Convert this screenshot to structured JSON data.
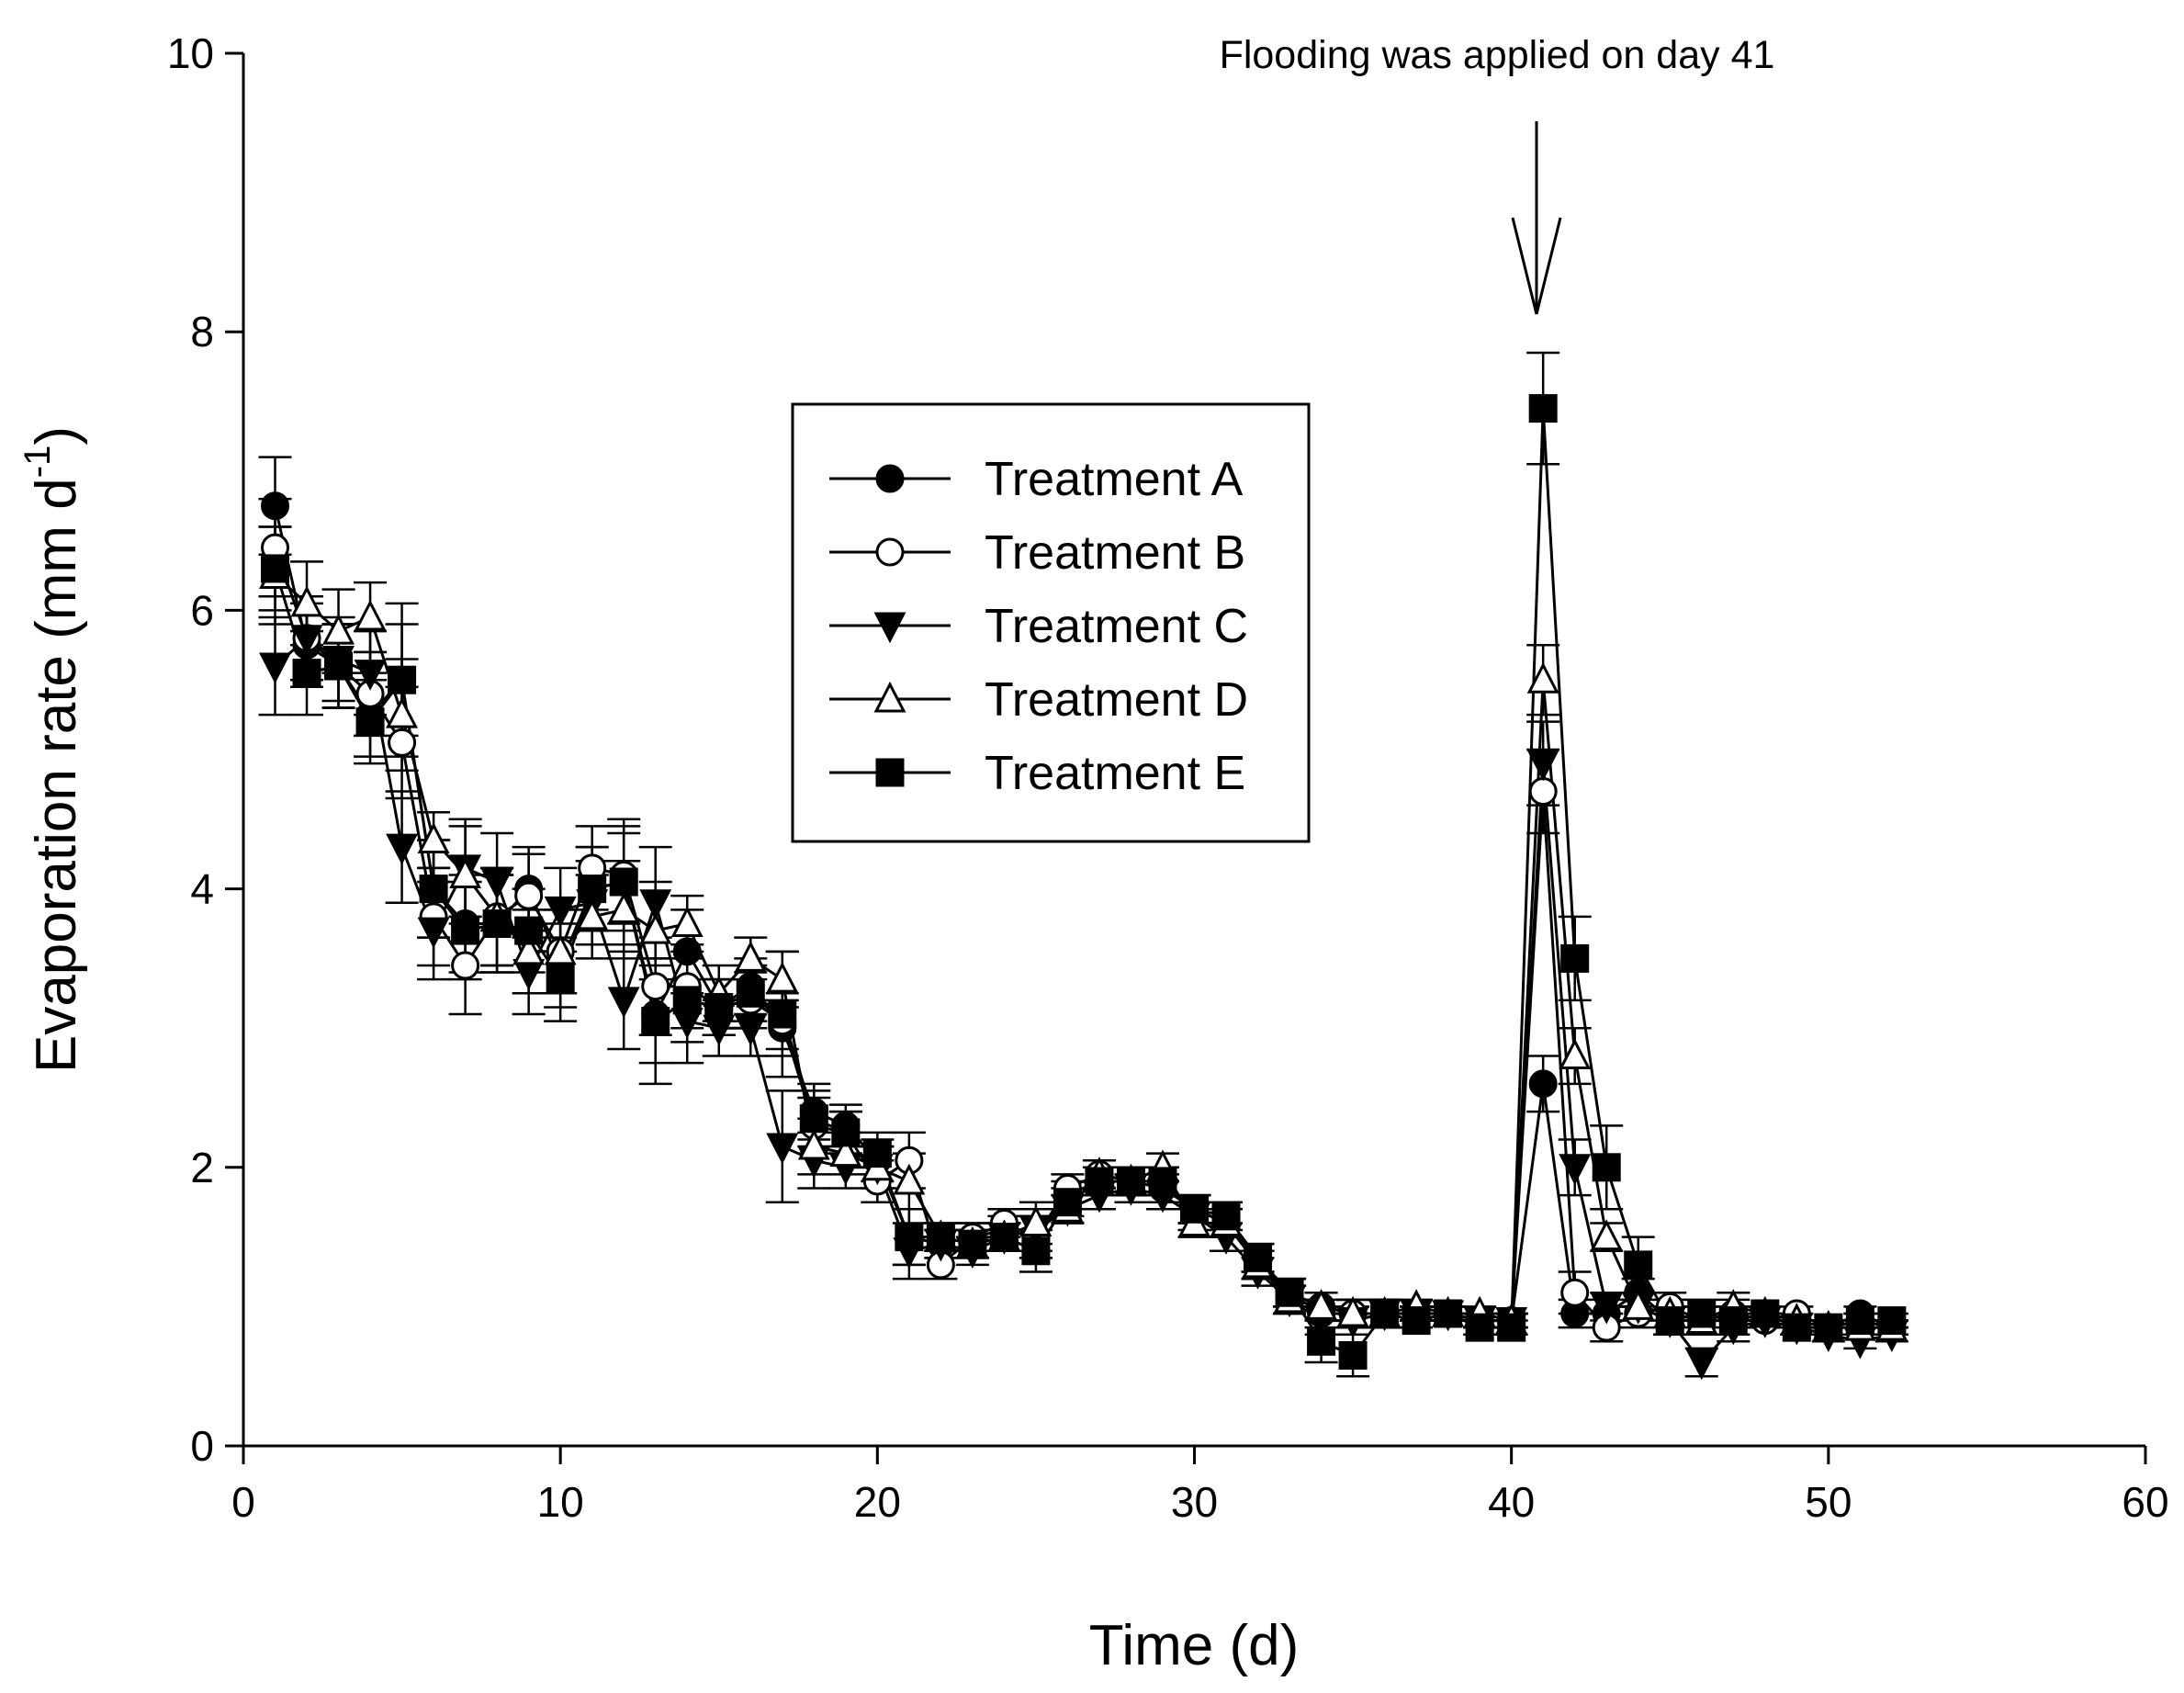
{
  "chart_data": {
    "type": "line",
    "title": "",
    "xlabel": "Time (d)",
    "ylabel": "Evaporation rate (mm d",
    "ylabel_sup": "-1",
    "ylabel_close": ")",
    "xlim": [
      0,
      60
    ],
    "ylim": [
      0,
      10
    ],
    "xticks": [
      "0",
      "10",
      "20",
      "30",
      "40",
      "50",
      "60"
    ],
    "yticks": [
      "0",
      "2",
      "4",
      "6",
      "8",
      "10"
    ],
    "annotation": {
      "text": "Flooding was applied on day 41",
      "x": 41
    },
    "legend_position": "center",
    "grid": false,
    "x": [
      1,
      2,
      3,
      4,
      5,
      6,
      7,
      8,
      9,
      10,
      11,
      12,
      13,
      14,
      15,
      16,
      17,
      18,
      19,
      20,
      21,
      22,
      23,
      24,
      25,
      26,
      27,
      28,
      29,
      30,
      31,
      32,
      33,
      34,
      35,
      36,
      37,
      38,
      39,
      40,
      41,
      42,
      43,
      44,
      45,
      46,
      47,
      48,
      49,
      50,
      51,
      52
    ],
    "series": [
      {
        "name": "Treatment A",
        "marker": "circle-filled",
        "values": [
          6.75,
          5.75,
          5.6,
          5.25,
          5.5,
          4.0,
          3.75,
          3.75,
          4.0,
          3.45,
          4.0,
          4.05,
          3.1,
          3.55,
          3.15,
          3.3,
          3.0,
          2.4,
          2.3,
          2.05,
          1.5,
          1.45,
          1.5,
          1.55,
          1.5,
          1.8,
          1.9,
          1.9,
          1.9,
          1.7,
          1.6,
          1.35,
          1.1,
          1.0,
          0.95,
          0.95,
          0.95,
          0.95,
          0.9,
          0.9,
          2.6,
          0.95,
          0.95,
          1.1,
          0.9,
          0.9,
          0.9,
          0.9,
          0.85,
          0.85,
          0.95,
          0.85
        ],
        "errors": [
          0.35,
          0.3,
          0.3,
          0.3,
          0.4,
          0.35,
          0.35,
          0.35,
          0.3,
          0.3,
          0.3,
          0.35,
          0.35,
          0.3,
          0.2,
          0.2,
          0.2,
          0.2,
          0.15,
          0.15,
          0.2,
          0.1,
          0.1,
          0.1,
          0.15,
          0.1,
          0.1,
          0.1,
          0.1,
          0.1,
          0.1,
          0.1,
          0.1,
          0.1,
          0.1,
          0.1,
          0.05,
          0.05,
          0.05,
          0.05,
          0.2,
          0.1,
          0.1,
          0.1,
          0.1,
          0.1,
          0.1,
          0.05,
          0.05,
          0.05,
          0.05,
          0.05
        ]
      },
      {
        "name": "Treatment B",
        "marker": "circle-open",
        "values": [
          6.45,
          5.8,
          5.6,
          5.4,
          5.05,
          3.8,
          3.45,
          3.8,
          3.95,
          3.55,
          4.15,
          4.1,
          3.3,
          3.3,
          3.15,
          3.2,
          3.05,
          2.3,
          2.25,
          1.9,
          2.05,
          1.3,
          1.5,
          1.6,
          1.5,
          1.85,
          1.95,
          1.9,
          1.85,
          1.7,
          1.6,
          1.3,
          1.1,
          0.95,
          0.95,
          0.95,
          0.95,
          0.95,
          0.9,
          0.9,
          4.7,
          1.1,
          0.85,
          0.95,
          1.0,
          0.9,
          0.95,
          0.9,
          0.95,
          0.85,
          0.9,
          0.85
        ],
        "errors": [
          0.35,
          0.3,
          0.3,
          0.3,
          0.4,
          0.35,
          0.35,
          0.35,
          0.3,
          0.3,
          0.3,
          0.35,
          0.35,
          0.3,
          0.2,
          0.2,
          0.2,
          0.2,
          0.15,
          0.15,
          0.2,
          0.1,
          0.1,
          0.1,
          0.15,
          0.1,
          0.1,
          0.1,
          0.1,
          0.1,
          0.1,
          0.1,
          0.1,
          0.1,
          0.1,
          0.1,
          0.05,
          0.05,
          0.05,
          0.05,
          0.3,
          0.15,
          0.1,
          0.1,
          0.1,
          0.1,
          0.1,
          0.05,
          0.05,
          0.05,
          0.05,
          0.05
        ]
      },
      {
        "name": "Treatment C",
        "marker": "triangle-down-filled",
        "values": [
          5.6,
          5.8,
          5.65,
          5.55,
          4.3,
          3.7,
          4.15,
          4.05,
          3.4,
          3.85,
          3.9,
          3.2,
          3.9,
          3.05,
          3.0,
          3.0,
          2.15,
          2.05,
          2.0,
          2.0,
          1.4,
          1.45,
          1.4,
          1.5,
          1.55,
          1.7,
          1.8,
          1.85,
          1.8,
          1.65,
          1.5,
          1.25,
          1.05,
          0.9,
          0.9,
          0.95,
          0.95,
          0.95,
          0.9,
          0.9,
          4.9,
          2.0,
          1.0,
          1.0,
          0.9,
          0.6,
          0.85,
          0.9,
          0.85,
          0.8,
          0.75,
          0.8
        ],
        "errors": [
          0.35,
          0.3,
          0.3,
          0.3,
          0.4,
          0.35,
          0.35,
          0.35,
          0.3,
          0.3,
          0.3,
          0.35,
          0.4,
          0.3,
          0.2,
          0.2,
          0.4,
          0.2,
          0.15,
          0.15,
          0.2,
          0.1,
          0.1,
          0.1,
          0.15,
          0.1,
          0.1,
          0.1,
          0.1,
          0.1,
          0.1,
          0.1,
          0.1,
          0.1,
          0.1,
          0.1,
          0.05,
          0.05,
          0.05,
          0.05,
          0.3,
          0.2,
          0.1,
          0.1,
          0.1,
          0.1,
          0.1,
          0.05,
          0.05,
          0.05,
          0.05,
          0.05
        ]
      },
      {
        "name": "Treatment D",
        "marker": "triangle-up-open",
        "values": [
          6.25,
          6.05,
          5.85,
          5.95,
          5.25,
          4.35,
          4.1,
          3.8,
          3.55,
          3.55,
          3.8,
          3.85,
          3.7,
          3.75,
          3.25,
          3.5,
          3.35,
          2.15,
          2.1,
          2.0,
          1.9,
          1.5,
          1.45,
          1.5,
          1.6,
          1.7,
          1.95,
          1.9,
          2.0,
          1.6,
          1.6,
          1.3,
          1.05,
          1.0,
          0.95,
          0.95,
          1.0,
          0.95,
          0.95,
          0.9,
          5.5,
          2.8,
          1.5,
          1.0,
          0.95,
          0.9,
          1.0,
          0.95,
          0.9,
          0.85,
          0.85,
          0.85
        ],
        "errors": [
          0.35,
          0.3,
          0.3,
          0.25,
          0.4,
          0.2,
          0.35,
          0.35,
          0.3,
          0.3,
          0.3,
          0.35,
          0.35,
          0.2,
          0.2,
          0.15,
          0.2,
          0.2,
          0.15,
          0.15,
          0.2,
          0.1,
          0.1,
          0.1,
          0.15,
          0.1,
          0.1,
          0.1,
          0.1,
          0.1,
          0.1,
          0.1,
          0.1,
          0.1,
          0.1,
          0.1,
          0.05,
          0.05,
          0.05,
          0.05,
          0.25,
          0.2,
          0.1,
          0.1,
          0.1,
          0.1,
          0.1,
          0.05,
          0.05,
          0.05,
          0.05,
          0.05
        ]
      },
      {
        "name": "Treatment E",
        "marker": "square-filled",
        "values": [
          6.3,
          5.55,
          5.6,
          5.2,
          5.5,
          4.0,
          3.7,
          3.75,
          3.7,
          3.35,
          4.0,
          4.05,
          3.05,
          3.2,
          3.15,
          3.25,
          3.1,
          2.35,
          2.25,
          2.1,
          1.5,
          1.5,
          1.45,
          1.5,
          1.4,
          1.75,
          1.9,
          1.9,
          1.9,
          1.7,
          1.65,
          1.35,
          1.1,
          0.75,
          0.65,
          0.95,
          0.9,
          0.95,
          0.85,
          0.85,
          7.45,
          3.5,
          2.0,
          1.3,
          0.9,
          0.95,
          0.9,
          0.95,
          0.85,
          0.85,
          0.9,
          0.9
        ],
        "errors": [
          0.3,
          0.3,
          0.3,
          0.3,
          0.55,
          0.35,
          0.35,
          0.35,
          0.3,
          0.3,
          0.3,
          0.45,
          0.45,
          0.3,
          0.2,
          0.2,
          0.45,
          0.2,
          0.15,
          0.15,
          0.2,
          0.1,
          0.1,
          0.1,
          0.15,
          0.1,
          0.1,
          0.1,
          0.1,
          0.1,
          0.1,
          0.1,
          0.1,
          0.15,
          0.15,
          0.1,
          0.05,
          0.05,
          0.05,
          0.05,
          0.4,
          0.3,
          0.3,
          0.2,
          0.1,
          0.1,
          0.1,
          0.05,
          0.05,
          0.05,
          0.05,
          0.05
        ]
      }
    ]
  }
}
